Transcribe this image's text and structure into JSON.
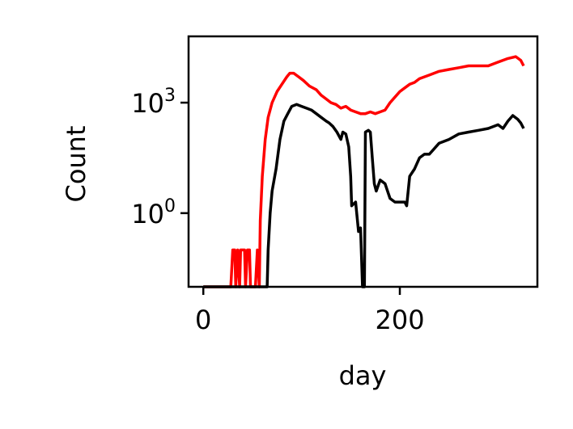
{
  "chart_data": {
    "type": "line",
    "title": "",
    "xlabel": "day",
    "ylabel": "Count",
    "xlim": [
      -15,
      340
    ],
    "ylim_log10": [
      -2.0,
      4.8
    ],
    "y_scale": "log",
    "x_ticks": [
      {
        "value": 0,
        "label": "0"
      },
      {
        "value": 200,
        "label": "200"
      }
    ],
    "y_ticks": [
      {
        "value_log10": 0,
        "base": "10",
        "exp": "0"
      },
      {
        "value_log10": 3,
        "base": "10",
        "exp": "3"
      }
    ],
    "grid": false,
    "series": [
      {
        "color": "#ff0000",
        "points_log10": [
          [
            0,
            -2
          ],
          [
            28,
            -2
          ],
          [
            30,
            -1
          ],
          [
            32,
            -1
          ],
          [
            33,
            -2
          ],
          [
            35,
            -1
          ],
          [
            37,
            -2
          ],
          [
            38,
            -1
          ],
          [
            42,
            -1
          ],
          [
            43,
            -2
          ],
          [
            45,
            -1
          ],
          [
            47,
            -1
          ],
          [
            48,
            -2
          ],
          [
            53,
            -2
          ],
          [
            55,
            -1
          ],
          [
            57,
            -2
          ],
          [
            58,
            -0.2
          ],
          [
            60,
            1.0
          ],
          [
            63,
            2.0
          ],
          [
            66,
            2.6
          ],
          [
            70,
            3.0
          ],
          [
            75,
            3.3
          ],
          [
            80,
            3.5
          ],
          [
            85,
            3.7
          ],
          [
            88,
            3.8
          ],
          [
            92,
            3.8
          ],
          [
            97,
            3.7
          ],
          [
            102,
            3.6
          ],
          [
            108,
            3.45
          ],
          [
            115,
            3.35
          ],
          [
            120,
            3.2
          ],
          [
            125,
            3.1
          ],
          [
            130,
            3.0
          ],
          [
            135,
            2.95
          ],
          [
            140,
            2.85
          ],
          [
            145,
            2.9
          ],
          [
            150,
            2.8
          ],
          [
            155,
            2.75
          ],
          [
            160,
            2.7
          ],
          [
            165,
            2.7
          ],
          [
            170,
            2.75
          ],
          [
            175,
            2.7
          ],
          [
            180,
            2.75
          ],
          [
            185,
            2.8
          ],
          [
            190,
            3.0
          ],
          [
            195,
            3.15
          ],
          [
            200,
            3.3
          ],
          [
            205,
            3.4
          ],
          [
            210,
            3.5
          ],
          [
            215,
            3.55
          ],
          [
            220,
            3.65
          ],
          [
            225,
            3.7
          ],
          [
            230,
            3.75
          ],
          [
            240,
            3.85
          ],
          [
            250,
            3.9
          ],
          [
            260,
            3.95
          ],
          [
            270,
            4.0
          ],
          [
            280,
            4.0
          ],
          [
            290,
            4.0
          ],
          [
            300,
            4.1
          ],
          [
            310,
            4.2
          ],
          [
            318,
            4.25
          ],
          [
            323,
            4.15
          ],
          [
            326,
            4.0
          ]
        ]
      },
      {
        "color": "#000000",
        "points_log10": [
          [
            0,
            -2
          ],
          [
            65,
            -2
          ],
          [
            66,
            -1
          ],
          [
            68,
            0.0
          ],
          [
            70,
            0.6
          ],
          [
            74,
            1.2
          ],
          [
            78,
            2.0
          ],
          [
            82,
            2.5
          ],
          [
            86,
            2.7
          ],
          [
            90,
            2.9
          ],
          [
            95,
            2.95
          ],
          [
            100,
            2.9
          ],
          [
            105,
            2.85
          ],
          [
            110,
            2.8
          ],
          [
            115,
            2.7
          ],
          [
            120,
            2.6
          ],
          [
            125,
            2.5
          ],
          [
            128,
            2.45
          ],
          [
            132,
            2.35
          ],
          [
            136,
            2.2
          ],
          [
            140,
            2.0
          ],
          [
            142,
            2.2
          ],
          [
            145,
            2.15
          ],
          [
            148,
            1.8
          ],
          [
            149,
            1.4
          ],
          [
            150,
            1.0
          ],
          [
            151,
            0.2
          ],
          [
            155,
            0.3
          ],
          [
            158,
            -0.5
          ],
          [
            160,
            -0.4
          ],
          [
            162,
            -2
          ],
          [
            164,
            -2
          ],
          [
            165,
            2.2
          ],
          [
            168,
            2.25
          ],
          [
            170,
            2.2
          ],
          [
            172,
            1.5
          ],
          [
            174,
            0.8
          ],
          [
            176,
            0.6
          ],
          [
            180,
            0.9
          ],
          [
            185,
            0.8
          ],
          [
            190,
            0.4
          ],
          [
            195,
            0.3
          ],
          [
            200,
            0.3
          ],
          [
            205,
            0.3
          ],
          [
            207,
            0.2
          ],
          [
            210,
            1.0
          ],
          [
            215,
            1.2
          ],
          [
            220,
            1.5
          ],
          [
            225,
            1.6
          ],
          [
            230,
            1.6
          ],
          [
            240,
            1.9
          ],
          [
            250,
            2.0
          ],
          [
            260,
            2.15
          ],
          [
            270,
            2.2
          ],
          [
            280,
            2.25
          ],
          [
            290,
            2.3
          ],
          [
            300,
            2.4
          ],
          [
            305,
            2.3
          ],
          [
            310,
            2.5
          ],
          [
            315,
            2.65
          ],
          [
            320,
            2.55
          ],
          [
            323,
            2.45
          ],
          [
            326,
            2.3
          ]
        ]
      }
    ]
  }
}
